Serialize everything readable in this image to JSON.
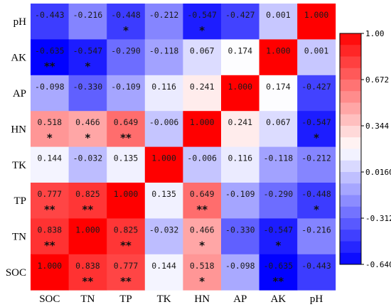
{
  "chart_data": {
    "type": "heatmap",
    "x_labels": [
      "SOC",
      "TN",
      "TP",
      "TK",
      "HN",
      "AP",
      "AK",
      "pH"
    ],
    "y_labels": [
      "pH",
      "AK",
      "AP",
      "HN",
      "TK",
      "TP",
      "TN",
      "SOC"
    ],
    "values": [
      [
        -0.443,
        -0.216,
        -0.448,
        -0.212,
        -0.547,
        -0.427,
        0.001,
        1.0
      ],
      [
        -0.635,
        -0.547,
        -0.29,
        -0.118,
        0.067,
        0.174,
        1.0,
        0.001
      ],
      [
        -0.098,
        -0.33,
        -0.109,
        0.116,
        0.241,
        1.0,
        0.174,
        -0.427
      ],
      [
        0.518,
        0.466,
        0.649,
        -0.006,
        1.0,
        0.241,
        0.067,
        -0.547
      ],
      [
        0.144,
        -0.032,
        0.135,
        1.0,
        -0.006,
        0.116,
        -0.118,
        -0.212
      ],
      [
        0.777,
        0.825,
        1.0,
        0.135,
        0.649,
        -0.109,
        -0.29,
        -0.448
      ],
      [
        0.838,
        1.0,
        0.825,
        -0.032,
        0.466,
        -0.33,
        -0.547,
        -0.216
      ],
      [
        1.0,
        0.838,
        0.777,
        0.144,
        0.518,
        -0.098,
        -0.635,
        -0.443
      ]
    ],
    "labels": [
      [
        "-0.443",
        "-0.216",
        "-0.448",
        "-0.212",
        "-0.547",
        "-0.427",
        "0.001",
        "1.000"
      ],
      [
        "-0.635",
        "-0.547",
        "-0.290",
        "-0.118",
        "0.067",
        "0.174",
        "1.000",
        "0.001"
      ],
      [
        "-0.098",
        "-0.330",
        "-0.109",
        "0.116",
        "0.241",
        "1.000",
        "0.174",
        "-0.427"
      ],
      [
        "0.518",
        "0.466",
        "0.649",
        "-0.006",
        "1.000",
        "0.241",
        "0.067",
        "-0.547"
      ],
      [
        "0.144",
        "-0.032",
        "0.135",
        "1.000",
        "-0.006",
        "0.116",
        "-0.118",
        "-0.212"
      ],
      [
        "0.777",
        "0.825",
        "1.000",
        "0.135",
        "0.649",
        "-0.109",
        "-0.290",
        "-0.448"
      ],
      [
        "0.838",
        "1.000",
        "0.825",
        "-0.032",
        "0.466",
        "-0.330",
        "-0.547",
        "-0.216"
      ],
      [
        "1.000",
        "0.838",
        "0.777",
        "0.144",
        "0.518",
        "-0.098",
        "-0.635",
        "-0.443"
      ]
    ],
    "significance": [
      [
        "",
        "",
        "*",
        "",
        "*",
        "",
        "",
        ""
      ],
      [
        "**",
        "*",
        "",
        "",
        "",
        "",
        "",
        ""
      ],
      [
        "",
        "",
        "",
        "",
        "",
        "",
        "",
        ""
      ],
      [
        "*",
        "*",
        "**",
        "",
        "",
        "",
        "",
        "*"
      ],
      [
        "",
        "",
        "",
        "",
        "",
        "",
        "",
        ""
      ],
      [
        "**",
        "**",
        "",
        "",
        "**",
        "",
        "",
        "*"
      ],
      [
        "**",
        "",
        "**",
        "",
        "*",
        "",
        "*",
        ""
      ],
      [
        "",
        "**",
        "**",
        "",
        "*",
        "",
        "**",
        ""
      ]
    ],
    "colorbar": {
      "min": -0.64,
      "max": 1.0,
      "ticks": [
        1.0,
        0.672,
        0.344,
        0.016,
        -0.312,
        -0.64
      ],
      "tick_labels": [
        "1.00",
        "0.672",
        "0.344",
        "0.0160",
        "-0.312",
        "-0.640"
      ],
      "colors": [
        "#0000ff",
        "#ffffff",
        "#ff0000"
      ]
    },
    "title": "",
    "xlabel": "",
    "ylabel": ""
  }
}
